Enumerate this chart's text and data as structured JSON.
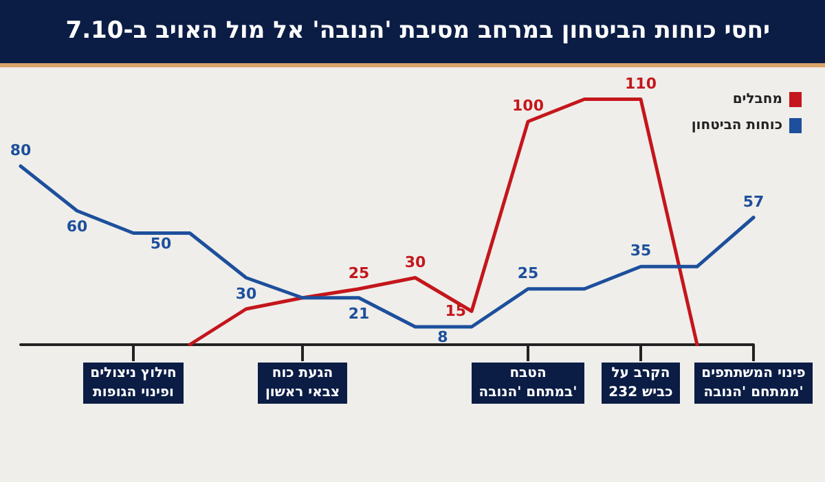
{
  "chart_data": {
    "type": "line",
    "title": "יחסי כוחות הביטחון במרחב מסיבת 'הנובה' אל מול האויב ב-7.10",
    "categories": [
      null,
      null,
      "חילוץ ניצולים\nופינוי הגופות",
      null,
      null,
      "הגעת כוח\nצבאי ראשון",
      null,
      null,
      null,
      "הטבח\nבמתחם 'הנובה'",
      null,
      "הקרב על\nכביש 232",
      null,
      "פינוי המשתתפים\nממתחם 'הנובה'"
    ],
    "series": [
      {
        "name": "מחבלים",
        "color": "#c4161c",
        "values": [
          null,
          null,
          null,
          0,
          16,
          21,
          25,
          30,
          15,
          100,
          110,
          110,
          0,
          null
        ],
        "value_labels": [
          null,
          null,
          null,
          null,
          null,
          null,
          "25",
          "30",
          "15",
          "100",
          null,
          "110",
          null,
          null
        ]
      },
      {
        "name": "כוחות הביטחון",
        "color": "#1d4f9c",
        "values": [
          80,
          60,
          50,
          50,
          30,
          21,
          21,
          8,
          8,
          25,
          25,
          35,
          35,
          57
        ],
        "value_labels": [
          "80",
          "60",
          "50",
          null,
          "30",
          null,
          "21",
          "8",
          null,
          "25",
          null,
          "35",
          null,
          "57"
        ]
      }
    ],
    "legend": "top right",
    "grid": false,
    "marker": "none",
    "line_style": "solid"
  }
}
